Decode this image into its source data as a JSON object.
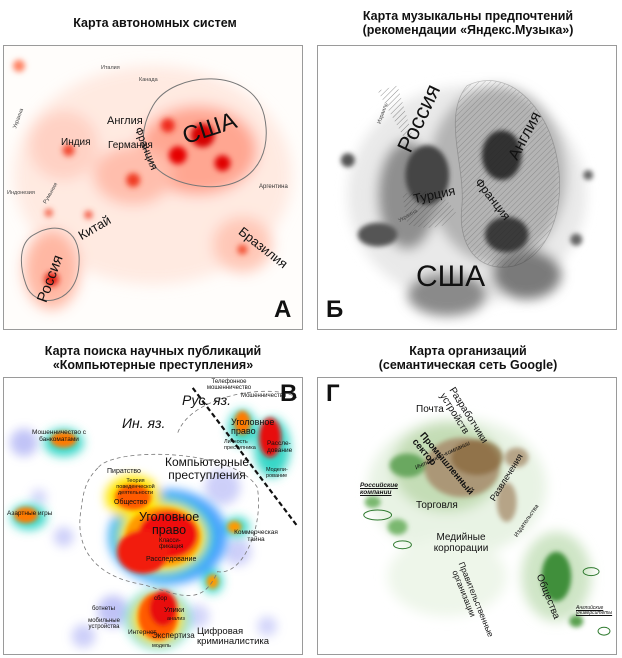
{
  "panels": {
    "a": {
      "title": "Карта автономных систем",
      "letter": "А",
      "labels": {
        "usa": "США",
        "france": "Франция",
        "england": "Англия",
        "germany": "Германия",
        "china": "Китай",
        "brazil": "Бразилия",
        "russia": "Россия",
        "italy": "Италия",
        "canada": "Канада",
        "argentina": "Аргентина",
        "indonesia": "Индонезия",
        "india": "Индия",
        "romania": "Румыния",
        "ukraine": "Украина"
      }
    },
    "b": {
      "title_line1": "Карта музыкальны предпочтений",
      "title_line2": "(рекомендации «Яндекс.Музыка»)",
      "letter": "Б",
      "labels": {
        "russia": "Россия",
        "england": "Англия",
        "turkey": "Турция",
        "france": "Франция",
        "usa": "США",
        "israel": "Израиль",
        "ukraine": "Украина"
      }
    },
    "v": {
      "title_line1": "Карта поиска научных публикаций",
      "title_line2": "«Компьютерные преступления»",
      "letter": "В",
      "labels": {
        "rus_yaz": "Рус. яз.",
        "in_yaz": "Ин. яз.",
        "fraud_cards": "Мошенничество с банкоматами",
        "gambling": "Азартные игры",
        "comp_crimes": "Компьютерные преступления",
        "piracy": "Пиратство",
        "theory": "Теория поведенческой деятельности",
        "society": "Общество",
        "criminal_law": "Уголовное право",
        "classification": "Класси-фикация",
        "investigation": "Расследование",
        "commercial_secret": "Коммерческая тайна",
        "phone_fraud": "Телефонное мошенничество",
        "fraud": "Мошенничество",
        "criminal_law_rus": "Уголовное право",
        "investigation_rus": "Рассле-дование",
        "identity": "Личность преступника",
        "modeling": "Модели-рование",
        "bots": "ботнеты",
        "mobile": "мобильные устройства",
        "collection": "сбор",
        "evidence": "Улики",
        "analysis": "анализ",
        "internet": "Интернет",
        "expertise": "Экспертиза",
        "model": "модель",
        "forensics": "Цифровая криминалистика"
      }
    },
    "g": {
      "title_line1": "Карта организаций",
      "title_line2": "(семантическая сеть Google)",
      "letter": "Г",
      "labels": {
        "developers": "Разработчики устройств",
        "mail": "Почта",
        "industry": "Промышленный сектор",
        "internet": "Интернет-компании",
        "development": "Развлечения",
        "russian": "Российские компании",
        "trade": "Торговля",
        "media": "Медийные корпорации",
        "publishing": "Издательства",
        "gov": "Правительственные организации",
        "ngos": "Общества",
        "english": "Английские университеты"
      }
    }
  },
  "colors": {
    "heat_red": "#e00000",
    "heat_orange": "#ff8a5a",
    "cold_blue": "#3a3fd8",
    "green": "#2f9a2f",
    "brown": "#8b6a40"
  }
}
